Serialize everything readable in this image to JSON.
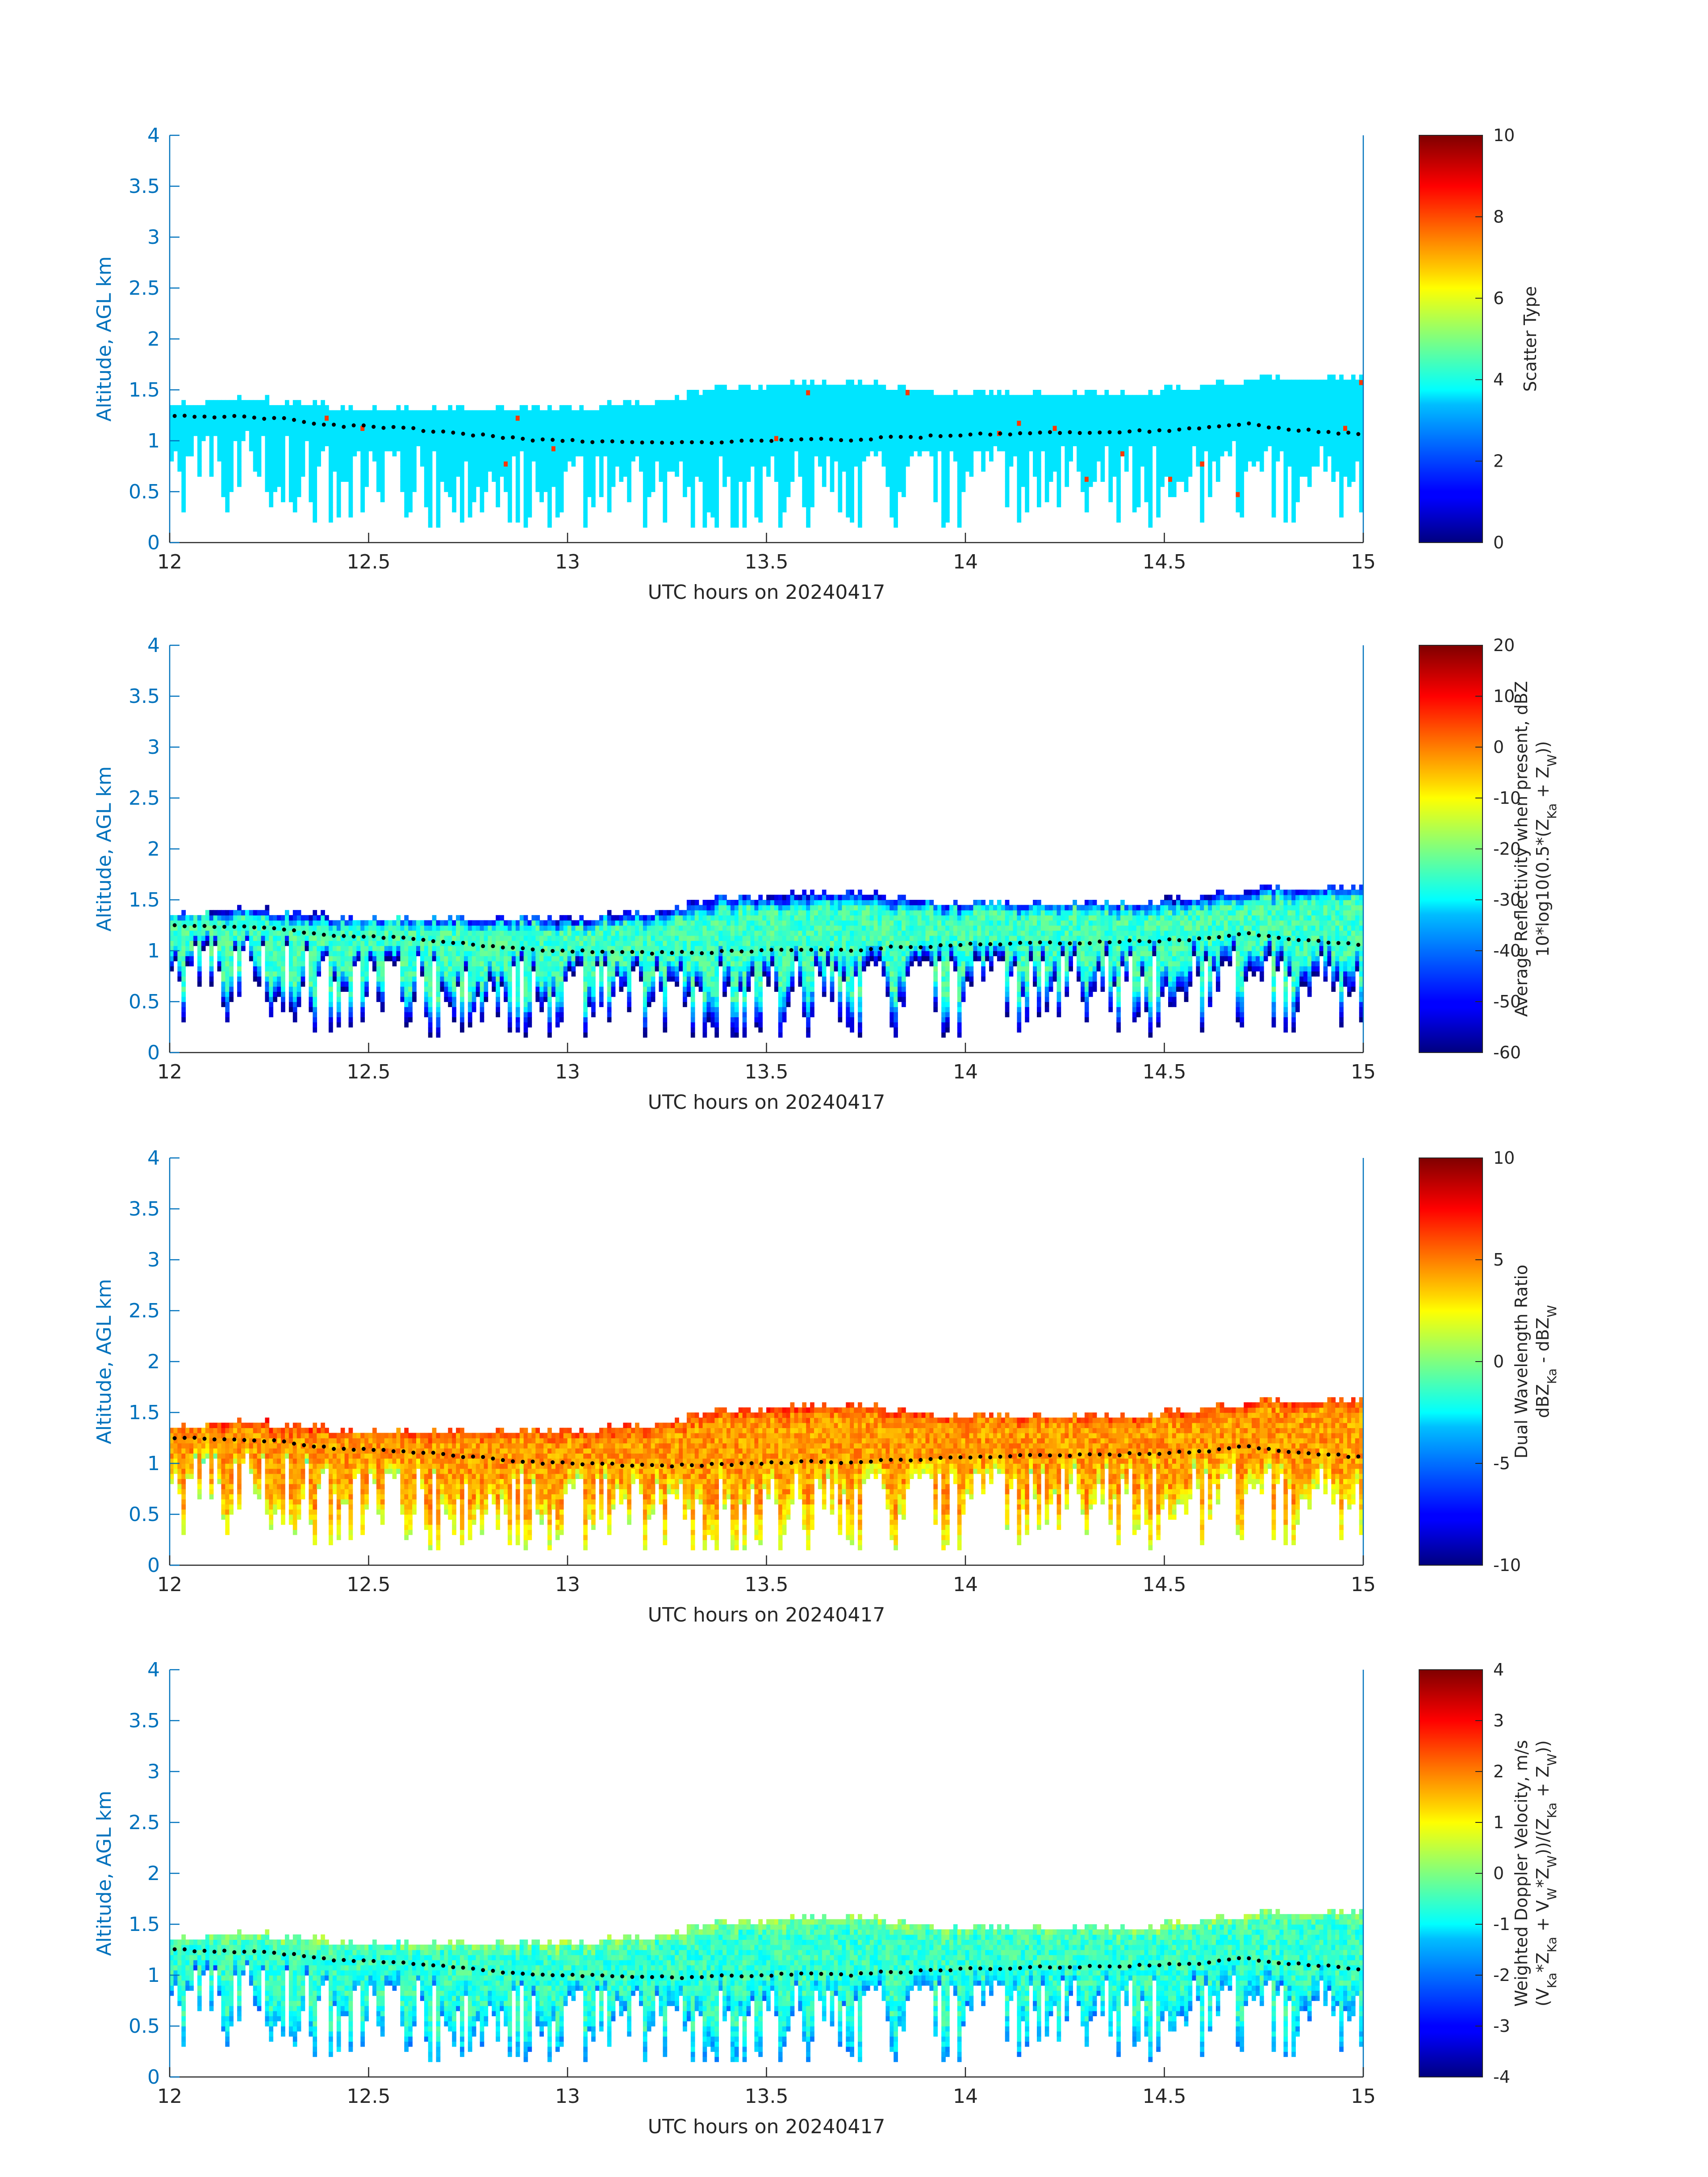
{
  "chart_data": [
    {
      "type": "heatmap",
      "ylabel": "Altitude, AGL km",
      "xlabel": "UTC hours on 20240417",
      "xlim": [
        12,
        15
      ],
      "ylim": [
        0,
        4
      ],
      "xticks": [
        "12",
        "12.5",
        "13",
        "13.5",
        "14",
        "14.5",
        "15"
      ],
      "yticks": [
        "0",
        "0.5",
        "1",
        "1.5",
        "2",
        "2.5",
        "3",
        "3.5",
        "4"
      ],
      "colorbar": {
        "label_lines": [
          "Scatter Type"
        ],
        "range": [
          0,
          10
        ],
        "ticks": [
          "0",
          "2",
          "4",
          "6",
          "8",
          "10"
        ]
      },
      "field": "scatter_type",
      "typical_value": 3.5,
      "outlier_value": 8.2,
      "cloud_base_km": {
        "x": [
          12.0,
          12.1,
          12.2,
          12.3,
          12.4,
          12.5,
          12.6,
          12.7,
          12.8,
          12.9,
          13.0,
          13.1,
          13.2,
          13.3,
          13.4,
          13.5,
          13.6,
          13.7,
          13.8,
          13.9,
          14.0,
          14.1,
          14.2,
          14.3,
          14.4,
          14.5,
          14.6,
          14.7,
          14.8,
          14.9,
          15.0
        ],
        "y": [
          1.25,
          1.24,
          1.23,
          1.21,
          1.15,
          1.14,
          1.12,
          1.08,
          1.05,
          1.01,
          1.0,
          0.99,
          0.98,
          0.98,
          0.99,
          1.0,
          1.02,
          1.0,
          1.03,
          1.04,
          1.06,
          1.07,
          1.08,
          1.08,
          1.09,
          1.1,
          1.12,
          1.17,
          1.12,
          1.09,
          1.06
        ]
      },
      "cloud_top_km": {
        "x": [
          12.0,
          12.1,
          12.2,
          12.3,
          12.4,
          12.5,
          12.6,
          12.7,
          12.8,
          12.9,
          13.0,
          13.1,
          13.2,
          13.3,
          13.4,
          13.5,
          13.6,
          13.7,
          13.8,
          13.9,
          14.0,
          14.1,
          14.2,
          14.3,
          14.4,
          14.5,
          14.6,
          14.7,
          14.8,
          14.9,
          15.0
        ],
        "y": [
          1.35,
          1.35,
          1.38,
          1.32,
          1.3,
          1.3,
          1.3,
          1.3,
          1.28,
          1.3,
          1.25,
          1.3,
          1.33,
          1.4,
          1.5,
          1.5,
          1.52,
          1.55,
          1.5,
          1.45,
          1.45,
          1.45,
          1.45,
          1.45,
          1.45,
          1.45,
          1.5,
          1.55,
          1.6,
          1.6,
          1.6
        ]
      }
    },
    {
      "type": "heatmap",
      "ylabel": "Altitude, AGL km",
      "xlabel": "UTC hours on 20240417",
      "xlim": [
        12,
        15
      ],
      "ylim": [
        0,
        4
      ],
      "xticks": [
        "12",
        "12.5",
        "13",
        "13.5",
        "14",
        "14.5",
        "15"
      ],
      "yticks": [
        "0",
        "0.5",
        "1",
        "1.5",
        "2",
        "2.5",
        "3",
        "3.5",
        "4"
      ],
      "colorbar": {
        "label_lines": [
          "Average Reflectivity when present, dBZ",
          "10*log10(0.5*(Z",
          "Ka",
          " + Z",
          "W",
          "))"
        ],
        "range": [
          -60,
          20
        ],
        "ticks": [
          "-60",
          "-50",
          "-40",
          "-30",
          "-20",
          "-10",
          "0",
          "10",
          "20"
        ]
      },
      "field": "reflectivity_dBZ",
      "top_value": -55,
      "mid_value": -25,
      "bottom_value": -55
    },
    {
      "type": "heatmap",
      "ylabel": "Altitude, AGL km",
      "xlabel": "UTC hours on 20240417",
      "xlim": [
        12,
        15
      ],
      "ylim": [
        0,
        4
      ],
      "xticks": [
        "12",
        "12.5",
        "13",
        "13.5",
        "14",
        "14.5",
        "15"
      ],
      "yticks": [
        "0",
        "0.5",
        "1",
        "1.5",
        "2",
        "2.5",
        "3",
        "3.5",
        "4"
      ],
      "colorbar": {
        "label_lines": [
          "Dual Wavelength Ratio",
          "dBZ",
          "Ka",
          " - dBZ",
          "W"
        ],
        "range": [
          -10,
          10
        ],
        "ticks": [
          "-10",
          "-5",
          "0",
          "5",
          "10"
        ]
      },
      "field": "dwr_dB",
      "top_value": 6.5,
      "mid_value": 4.5,
      "bottom_value": 2.0
    },
    {
      "type": "heatmap",
      "ylabel": "Altitude, AGL km",
      "xlabel": "UTC hours on 20240417",
      "xlim": [
        12,
        15
      ],
      "ylim": [
        0,
        4
      ],
      "xticks": [
        "12",
        "12.5",
        "13",
        "13.5",
        "14",
        "14.5",
        "15"
      ],
      "yticks": [
        "0",
        "0.5",
        "1",
        "1.5",
        "2",
        "2.5",
        "3",
        "3.5",
        "4"
      ],
      "colorbar": {
        "label_lines": [
          "Weighted Doppler Velocity, m/s",
          "(V",
          "Ka",
          "*Z",
          "Ka",
          " + V",
          "W",
          "*Z",
          "W",
          "))/(Z",
          "Ka",
          " + Z",
          "W",
          "))"
        ],
        "range": [
          -4,
          4
        ],
        "ticks": [
          "-4",
          "-3",
          "-2",
          "-1",
          "0",
          "1",
          "2",
          "3",
          "4"
        ]
      },
      "field": "doppler_velocity_ms",
      "top_value": 0.2,
      "mid_value": -0.6,
      "bottom_value": -1.6
    }
  ]
}
